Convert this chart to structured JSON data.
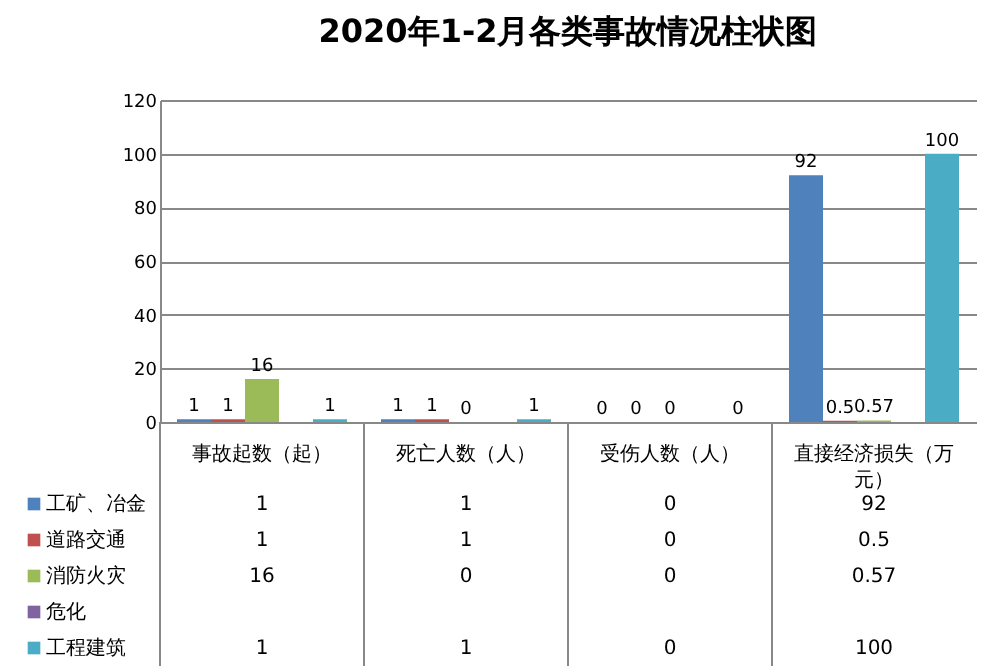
{
  "chart_data": {
    "type": "bar",
    "title": "2020年1-2月各类事故情况柱状图",
    "categories": [
      "事故起数（起）",
      "死亡人数（人）",
      "受伤人数（人）",
      "直接经济损失（万元）"
    ],
    "series": [
      {
        "name": "工矿、冶金",
        "color": "#4f81bd",
        "values": [
          1,
          1,
          0,
          92
        ],
        "value_labels": [
          "1",
          "1",
          "0",
          "92"
        ]
      },
      {
        "name": "道路交通",
        "color": "#c0504d",
        "values": [
          1,
          1,
          0,
          0.5
        ],
        "value_labels": [
          "1",
          "1",
          "0",
          "0.5"
        ]
      },
      {
        "name": "消防火灾",
        "color": "#9bbb59",
        "values": [
          16,
          0,
          0,
          0.57
        ],
        "value_labels": [
          "16",
          "0",
          "0",
          "0.57"
        ]
      },
      {
        "name": "危化",
        "color": "#8064a2",
        "values": [
          null,
          null,
          null,
          null
        ],
        "value_labels": [
          null,
          null,
          null,
          null
        ]
      },
      {
        "name": "工程建筑",
        "color": "#4bacc6",
        "values": [
          1,
          1,
          0,
          100
        ],
        "value_labels": [
          "1",
          "1",
          "0",
          "100"
        ]
      }
    ],
    "ylim": [
      0,
      120
    ],
    "yticks": [
      0,
      20,
      40,
      60,
      80,
      100,
      120
    ],
    "grid": "y",
    "data_labels": true,
    "legend": "bottom left"
  }
}
